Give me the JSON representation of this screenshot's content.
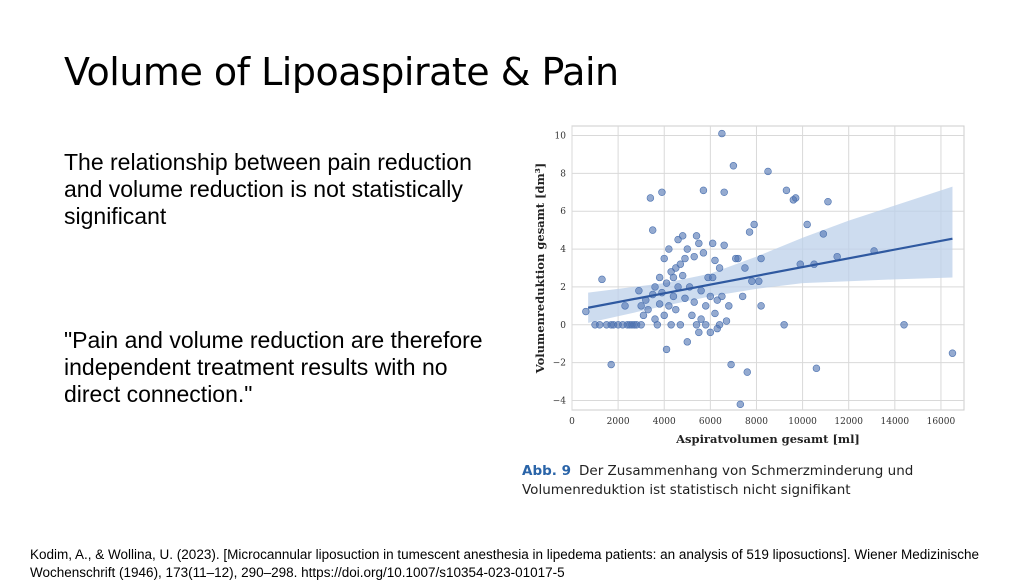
{
  "slide": {
    "title": "Volume of Lipoaspirate & Pain",
    "paragraph_1": "The relationship between pain reduction and volume reduction is not statistically significant",
    "paragraph_2": "\"Pain and volume reduction are therefore independent treatment results with no direct connection.\"",
    "caption_label": "Abb. 9",
    "caption_text": "Der Zusammenhang von Schmerzminderung und Volumenreduktion ist statistisch nicht signifikant",
    "citation": "Kodim, A., & Wollina, U. (2023). [Microcannular liposuction in tumescent anesthesia in lipedema patients: an analysis of 519 liposuctions]. Wiener Medizinische Wochenschrift (1946), 173(11–12), 290–298. https://doi.org/10.1007/s10354-023-01017-5"
  },
  "colors": {
    "point": "#4c72b0",
    "regression_line": "#2f59a0",
    "confidence_band": "#bcd0ea",
    "grid": "#d9d9d9"
  },
  "chart_data": {
    "type": "scatter",
    "xlabel": "Aspiratvolumen gesamt [ml]",
    "ylabel": "Volumenreduktion gesamt [dm³]",
    "xlim": [
      0,
      17000
    ],
    "ylim": [
      -4.5,
      10.5
    ],
    "xticks": [
      0,
      2000,
      4000,
      6000,
      8000,
      10000,
      12000,
      14000,
      16000
    ],
    "yticks": [
      -4,
      -2,
      0,
      2,
      4,
      6,
      8,
      10
    ],
    "xtick_labels": [
      "0",
      "2000",
      "4000",
      "6000",
      "8000",
      "10000",
      "12000",
      "14000",
      "16000"
    ],
    "ytick_labels": [
      "−4",
      "−2",
      "0",
      "2",
      "4",
      "6",
      "8",
      "10"
    ],
    "grid": true,
    "regression": {
      "x": [
        700,
        16500
      ],
      "y": [
        0.9,
        4.55
      ],
      "ci_x": [
        700,
        4000,
        6000,
        8000,
        10000,
        12000,
        14000,
        16500
      ],
      "ci_upper": [
        1.7,
        2.2,
        2.7,
        3.6,
        4.6,
        5.5,
        6.3,
        7.3
      ],
      "ci_lower": [
        0.1,
        1.0,
        1.5,
        1.9,
        2.2,
        2.3,
        2.4,
        2.5
      ]
    },
    "points": [
      [
        600,
        0.7
      ],
      [
        1000,
        0
      ],
      [
        1200,
        0
      ],
      [
        1300,
        2.4
      ],
      [
        1500,
        0
      ],
      [
        1700,
        0
      ],
      [
        1700,
        -2.1
      ],
      [
        1800,
        0
      ],
      [
        2000,
        0
      ],
      [
        2200,
        0
      ],
      [
        2300,
        1.0
      ],
      [
        2400,
        0
      ],
      [
        2500,
        0
      ],
      [
        2600,
        0
      ],
      [
        2700,
        0
      ],
      [
        2800,
        0
      ],
      [
        2900,
        1.8
      ],
      [
        3000,
        1.0
      ],
      [
        3000,
        0
      ],
      [
        3100,
        0.5
      ],
      [
        3200,
        1.3
      ],
      [
        3300,
        0.8
      ],
      [
        3400,
        6.7
      ],
      [
        3500,
        1.6
      ],
      [
        3500,
        5.0
      ],
      [
        3600,
        2.0
      ],
      [
        3600,
        0.3
      ],
      [
        3700,
        0
      ],
      [
        3800,
        2.5
      ],
      [
        3800,
        1.1
      ],
      [
        3900,
        7.0
      ],
      [
        3900,
        1.7
      ],
      [
        4000,
        3.5
      ],
      [
        4000,
        0.5
      ],
      [
        4100,
        -1.3
      ],
      [
        4100,
        2.2
      ],
      [
        4200,
        4.0
      ],
      [
        4200,
        1.0
      ],
      [
        4300,
        2.8
      ],
      [
        4300,
        0
      ],
      [
        4400,
        2.5
      ],
      [
        4400,
        1.5
      ],
      [
        4500,
        3.0
      ],
      [
        4500,
        0.8
      ],
      [
        4600,
        4.5
      ],
      [
        4600,
        2.0
      ],
      [
        4700,
        3.2
      ],
      [
        4700,
        0
      ],
      [
        4800,
        4.7
      ],
      [
        4800,
        2.6
      ],
      [
        4900,
        3.5
      ],
      [
        4900,
        1.4
      ],
      [
        5000,
        -0.9
      ],
      [
        5000,
        4.0
      ],
      [
        5100,
        2.0
      ],
      [
        5200,
        0.5
      ],
      [
        5300,
        3.6
      ],
      [
        5300,
        1.2
      ],
      [
        5400,
        4.7
      ],
      [
        5400,
        0
      ],
      [
        5500,
        -0.4
      ],
      [
        5500,
        4.3
      ],
      [
        5600,
        1.8
      ],
      [
        5600,
        0.3
      ],
      [
        5700,
        3.8
      ],
      [
        5700,
        7.1
      ],
      [
        5800,
        1.0
      ],
      [
        5800,
        0
      ],
      [
        5900,
        2.5
      ],
      [
        6000,
        1.5
      ],
      [
        6000,
        -0.4
      ],
      [
        6100,
        4.3
      ],
      [
        6100,
        2.5
      ],
      [
        6200,
        3.4
      ],
      [
        6200,
        0.6
      ],
      [
        6300,
        1.3
      ],
      [
        6300,
        -0.2
      ],
      [
        6400,
        3.0
      ],
      [
        6400,
        0
      ],
      [
        6500,
        10.1
      ],
      [
        6500,
        1.5
      ],
      [
        6600,
        7.0
      ],
      [
        6600,
        4.2
      ],
      [
        6700,
        0.2
      ],
      [
        6800,
        1.0
      ],
      [
        6900,
        -2.1
      ],
      [
        7000,
        8.4
      ],
      [
        7100,
        3.5
      ],
      [
        7200,
        3.5
      ],
      [
        7300,
        -4.2
      ],
      [
        7400,
        1.5
      ],
      [
        7500,
        3.0
      ],
      [
        7600,
        -2.5
      ],
      [
        7700,
        4.9
      ],
      [
        7800,
        2.3
      ],
      [
        7900,
        5.3
      ],
      [
        8100,
        2.3
      ],
      [
        8200,
        3.5
      ],
      [
        8200,
        1.0
      ],
      [
        8500,
        8.1
      ],
      [
        9200,
        0
      ],
      [
        9300,
        7.1
      ],
      [
        9600,
        6.6
      ],
      [
        9700,
        6.7
      ],
      [
        9900,
        3.2
      ],
      [
        10200,
        5.3
      ],
      [
        10500,
        3.2
      ],
      [
        10600,
        -2.3
      ],
      [
        10900,
        4.8
      ],
      [
        11100,
        6.5
      ],
      [
        11500,
        3.6
      ],
      [
        13100,
        3.9
      ],
      [
        14400,
        0
      ],
      [
        16500,
        -1.5
      ]
    ]
  }
}
